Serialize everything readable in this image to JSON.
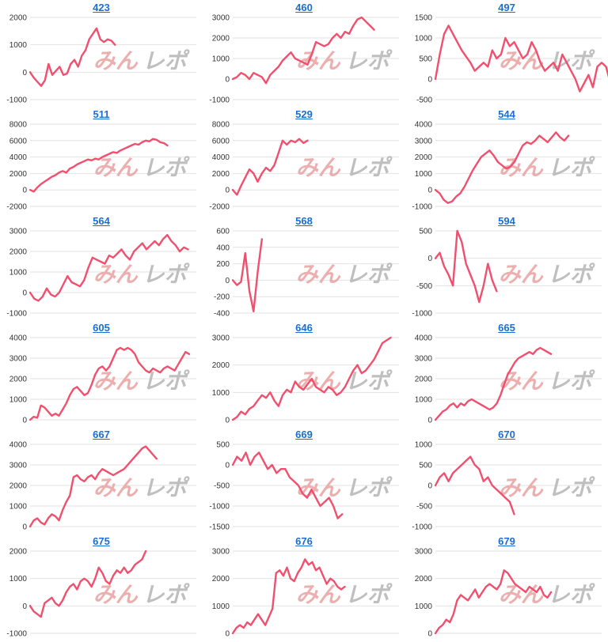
{
  "colors": {
    "line": "#f0506e",
    "grid": "#e2e2e2",
    "title": "#1a6fd1",
    "watermark_red": "#eaa0a0",
    "watermark_gray": "#b8b8b8"
  },
  "watermark": "みんレポ",
  "chart_data": [
    {
      "type": "line",
      "title": "423",
      "ylim": [
        -1000,
        2000
      ],
      "yticks": [
        -1000,
        0,
        1000,
        2000
      ],
      "xmax": 45,
      "values": [
        0,
        -200,
        -350,
        -500,
        -300,
        300,
        -100,
        50,
        200,
        -100,
        -50,
        300,
        450,
        200,
        600,
        800,
        1200,
        1400,
        1600,
        1200,
        1100,
        1200,
        1150,
        1000
      ]
    },
    {
      "type": "line",
      "title": "460",
      "ylim": [
        -1000,
        3000
      ],
      "yticks": [
        -1000,
        0,
        1000,
        2000,
        3000
      ],
      "xmax": 40,
      "values": [
        0,
        100,
        300,
        200,
        0,
        300,
        200,
        100,
        -200,
        200,
        400,
        600,
        900,
        1100,
        1300,
        1000,
        900,
        800,
        700,
        1200,
        1800,
        1700,
        1600,
        1700,
        2000,
        2200,
        2000,
        2300,
        2200,
        2600,
        2900,
        3000,
        2800,
        2600,
        2400
      ]
    },
    {
      "type": "line",
      "title": "497",
      "ylim": [
        -500,
        1500
      ],
      "yticks": [
        -500,
        0,
        500,
        1000,
        1500
      ],
      "xmax": 38,
      "values": [
        0,
        600,
        1100,
        1300,
        1100,
        900,
        700,
        550,
        400,
        200,
        300,
        400,
        300,
        700,
        500,
        600,
        1000,
        800,
        900,
        700,
        500,
        600,
        900,
        700,
        400,
        200,
        300,
        400,
        200,
        600,
        400,
        200,
        0,
        -300,
        -100,
        100,
        -200,
        300,
        400,
        300,
        -100,
        -500
      ]
    },
    {
      "type": "line",
      "title": "511",
      "ylim": [
        -2000,
        8000
      ],
      "yticks": [
        -2000,
        0,
        2000,
        4000,
        6000,
        8000
      ],
      "xmax": 46,
      "values": [
        0,
        -200,
        300,
        700,
        1000,
        1300,
        1600,
        1800,
        2100,
        2300,
        2100,
        2600,
        2800,
        3100,
        3300,
        3500,
        3700,
        3600,
        3800,
        3700,
        4000,
        4200,
        4400,
        4600,
        4500,
        4800,
        5000,
        5200,
        5400,
        5600,
        5500,
        5800,
        6000,
        5900,
        6200,
        6100,
        5800,
        5700,
        5400
      ]
    },
    {
      "type": "line",
      "title": "529",
      "ylim": [
        -2000,
        8000
      ],
      "yticks": [
        -2000,
        0,
        2000,
        4000,
        6000,
        8000
      ],
      "xmax": 40,
      "values": [
        0,
        -600,
        500,
        1500,
        2500,
        2000,
        1000,
        2000,
        2700,
        2300,
        3000,
        4500,
        6000,
        5500,
        6000,
        5800,
        6200,
        5700,
        6000
      ]
    },
    {
      "type": "line",
      "title": "544",
      "ylim": [
        -1000,
        4000
      ],
      "yticks": [
        -1000,
        0,
        1000,
        2000,
        3000,
        4000
      ],
      "xmax": 40,
      "values": [
        0,
        -200,
        -600,
        -800,
        -700,
        -400,
        -200,
        200,
        700,
        1200,
        1600,
        2000,
        2200,
        2400,
        2100,
        1700,
        1500,
        1300,
        1400,
        1700,
        2200,
        2700,
        2900,
        2800,
        3000,
        3300,
        3100,
        2900,
        3200,
        3500,
        3200,
        3000,
        3300
      ]
    },
    {
      "type": "line",
      "title": "564",
      "ylim": [
        -1000,
        3000
      ],
      "yticks": [
        -1000,
        0,
        1000,
        2000,
        3000
      ],
      "xmax": 40,
      "values": [
        0,
        -300,
        -400,
        -200,
        200,
        -100,
        -200,
        0,
        400,
        800,
        500,
        400,
        300,
        600,
        1200,
        1700,
        1600,
        1500,
        1400,
        1800,
        1700,
        1900,
        2100,
        1800,
        1600,
        2000,
        2200,
        2400,
        2100,
        2300,
        2500,
        2300,
        2600,
        2800,
        2500,
        2300,
        2000,
        2200,
        2100
      ]
    },
    {
      "type": "line",
      "title": "568",
      "ylim": [
        -400,
        600
      ],
      "yticks": [
        -400,
        -200,
        0,
        200,
        400,
        600
      ],
      "xmax": 40,
      "values": [
        0,
        -60,
        -20,
        330,
        -130,
        -380,
        100,
        500
      ]
    },
    {
      "type": "line",
      "title": "594",
      "ylim": [
        -1000,
        500
      ],
      "yticks": [
        -1000,
        -500,
        0,
        500
      ],
      "xmax": 38,
      "values": [
        0,
        100,
        -150,
        -300,
        -500,
        500,
        300,
        -100,
        -300,
        -500,
        -800,
        -500,
        -100,
        -400,
        -600
      ]
    },
    {
      "type": "line",
      "title": "605",
      "ylim": [
        0,
        4000
      ],
      "yticks": [
        0,
        1000,
        2000,
        3000,
        4000
      ],
      "xmax": 46,
      "values": [
        0,
        150,
        100,
        700,
        600,
        400,
        200,
        300,
        200,
        500,
        800,
        1200,
        1500,
        1600,
        1400,
        1200,
        1300,
        1700,
        2200,
        2500,
        2600,
        2400,
        2600,
        3000,
        3400,
        3500,
        3400,
        3500,
        3400,
        3200,
        2800,
        2600,
        2400,
        2300,
        2500,
        2400,
        2300,
        2500,
        2600,
        2500,
        2400,
        2700,
        3000,
        3300,
        3200
      ]
    },
    {
      "type": "line",
      "title": "646",
      "ylim": [
        0,
        3000
      ],
      "yticks": [
        0,
        1000,
        2000,
        3000
      ],
      "xmax": 40,
      "values": [
        0,
        100,
        300,
        200,
        400,
        500,
        700,
        900,
        800,
        1000,
        700,
        500,
        900,
        1100,
        1000,
        1400,
        1200,
        1100,
        1300,
        1500,
        1200,
        1100,
        1000,
        1200,
        1100,
        900,
        1000,
        1200,
        1500,
        1800,
        2000,
        1700,
        1800,
        2000,
        2200,
        2500,
        2800,
        2900,
        3000
      ]
    },
    {
      "type": "line",
      "title": "665",
      "ylim": [
        0,
        4000
      ],
      "yticks": [
        0,
        1000,
        2000,
        3000,
        4000
      ],
      "xmax": 46,
      "values": [
        0,
        200,
        400,
        500,
        700,
        800,
        600,
        800,
        700,
        900,
        1000,
        900,
        800,
        700,
        600,
        500,
        600,
        800,
        1200,
        1700,
        2200,
        2500,
        2800,
        3000,
        3100,
        3200,
        3300,
        3200,
        3400,
        3500,
        3400,
        3300,
        3200
      ]
    },
    {
      "type": "line",
      "title": "667",
      "ylim": [
        0,
        4000
      ],
      "yticks": [
        0,
        1000,
        2000,
        3000,
        4000
      ],
      "xmax": 46,
      "values": [
        0,
        300,
        400,
        200,
        100,
        400,
        600,
        500,
        300,
        800,
        1200,
        1500,
        2400,
        2500,
        2300,
        2200,
        2400,
        2500,
        2300,
        2600,
        2800,
        2700,
        2600,
        2500,
        2600,
        2700,
        2800,
        3000,
        3200,
        3400,
        3600,
        3800,
        3900,
        3700,
        3500,
        3300
      ]
    },
    {
      "type": "line",
      "title": "669",
      "ylim": [
        -1500,
        500
      ],
      "yticks": [
        -1500,
        -1000,
        -500,
        0,
        500
      ],
      "xmax": 38,
      "values": [
        0,
        200,
        100,
        300,
        0,
        200,
        300,
        100,
        -100,
        0,
        -200,
        -100,
        -100,
        -300,
        -400,
        -500,
        -700,
        -800,
        -600,
        -800,
        -1000,
        -900,
        -800,
        -1000,
        -1300,
        -1200
      ]
    },
    {
      "type": "line",
      "title": "670",
      "ylim": [
        -1000,
        1000
      ],
      "yticks": [
        -1000,
        -500,
        0,
        500,
        1000
      ],
      "xmax": 38,
      "values": [
        0,
        200,
        300,
        100,
        300,
        400,
        500,
        600,
        700,
        500,
        400,
        100,
        200,
        0,
        -100,
        -200,
        -300,
        -400,
        -700
      ]
    },
    {
      "type": "line",
      "title": "675",
      "ylim": [
        -1000,
        2000
      ],
      "yticks": [
        -1000,
        0,
        1000,
        2000
      ],
      "xmax": 46,
      "values": [
        0,
        -200,
        -300,
        -400,
        100,
        200,
        300,
        100,
        0,
        200,
        500,
        700,
        800,
        600,
        900,
        1000,
        900,
        700,
        1000,
        1400,
        1200,
        900,
        800,
        1100,
        1300,
        1200,
        1400,
        1200,
        1300,
        1500,
        1600,
        1700,
        2000
      ]
    },
    {
      "type": "line",
      "title": "676",
      "ylim": [
        0,
        3000
      ],
      "yticks": [
        0,
        1000,
        2000,
        3000
      ],
      "xmax": 46,
      "values": [
        0,
        200,
        300,
        200,
        400,
        300,
        500,
        700,
        500,
        300,
        600,
        900,
        2200,
        2300,
        2100,
        2400,
        2000,
        1900,
        2200,
        2400,
        2700,
        2500,
        2600,
        2300,
        2400,
        2100,
        1800,
        2000,
        1900,
        1700,
        1600,
        1700
      ]
    },
    {
      "type": "line",
      "title": "679",
      "ylim": [
        0,
        3000
      ],
      "yticks": [
        0,
        1000,
        2000,
        3000
      ],
      "xmax": 46,
      "values": [
        0,
        200,
        300,
        500,
        400,
        700,
        1200,
        1400,
        1300,
        1200,
        1400,
        1600,
        1300,
        1500,
        1700,
        1800,
        1700,
        1600,
        1800,
        2300,
        2200,
        2000,
        1800,
        1700,
        1600,
        1500,
        1700,
        1600,
        1500,
        1700,
        1400,
        1300,
        1500
      ]
    }
  ]
}
